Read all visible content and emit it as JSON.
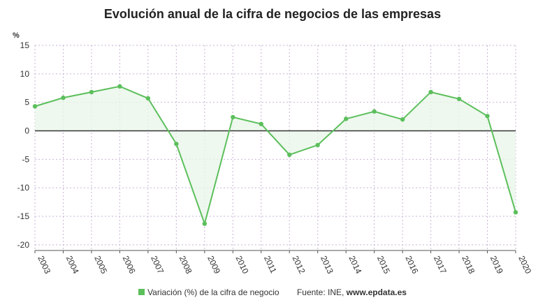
{
  "colors": {
    "series": "#5cbf5c",
    "fill": "#eaf6ea",
    "zero_line": "#333333",
    "grid": "#c9b3d6"
  },
  "chart_data": {
    "type": "line",
    "title": "Evolución anual de la cifra de negocios de las empresas",
    "ylabel": "%",
    "ylim": [
      -21,
      15
    ],
    "yticks": [
      15,
      10,
      5,
      0,
      -5,
      -10,
      -15,
      -20
    ],
    "grid": true,
    "legend_position": "bottom",
    "categories": [
      "2003",
      "2004",
      "2005",
      "2006",
      "2007",
      "2008",
      "2009",
      "2010",
      "2011",
      "2012",
      "2013",
      "2014",
      "2015",
      "2016",
      "2017",
      "2018",
      "2019",
      "2020"
    ],
    "series": [
      {
        "name": "Variación (%) de la cifra de negocio",
        "values": [
          4.3,
          5.8,
          6.8,
          7.8,
          5.7,
          -2.3,
          -16.3,
          2.4,
          1.2,
          -4.2,
          -2.5,
          2.1,
          3.4,
          2.0,
          6.8,
          5.6,
          2.6,
          -14.3
        ]
      }
    ]
  },
  "footer": {
    "legend_label": "Variación (%) de la cifra de negocio",
    "source_label": "Fuente: INE,",
    "source_site": "www.epdata.es"
  }
}
